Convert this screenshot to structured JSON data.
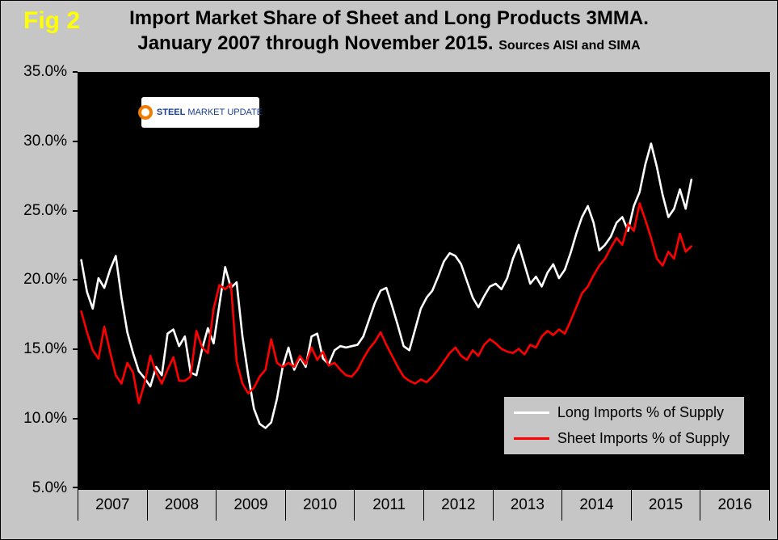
{
  "fig_label": "Fig 2",
  "title": {
    "line1": "Import Market Share of Sheet and Long Products 3MMA.",
    "line2": "January 2007 through November 2015.",
    "sources": "Sources AISI and SIMA"
  },
  "logo": {
    "steel": "STEEL",
    "market": "MARKET",
    "update": "UPDATE"
  },
  "y_axis": {
    "ticks": [
      "35.0%",
      "30.0%",
      "25.0%",
      "20.0%",
      "15.0%",
      "10.0%",
      "5.0%"
    ]
  },
  "x_axis": {
    "years": [
      "2007",
      "2008",
      "2009",
      "2010",
      "2011",
      "2012",
      "2013",
      "2014",
      "2015",
      "2016"
    ]
  },
  "legend": [
    {
      "label": "Long Imports % of Supply",
      "color": "#ffffff"
    },
    {
      "label": "Sheet Imports % of Supply",
      "color": "#ff0000"
    }
  ],
  "colors": {
    "background": "#c6c6c6",
    "plot_background": "#000000",
    "fig_label": "#ffff00",
    "long_line": "#ffffff",
    "sheet_line": "#ff0000"
  },
  "chart_data": {
    "type": "line",
    "title": "Import Market Share of Sheet and Long Products 3MMA. January 2007 through November 2015.",
    "x_frequency": "monthly",
    "x_start": "2007-01",
    "x_end": "2015-11",
    "x_axis_span": [
      "2007-01",
      "2016-12"
    ],
    "x_axis_total_months": 120,
    "ylim": [
      5,
      35
    ],
    "y_tick_step": 5,
    "y_format": "percent",
    "grid": false,
    "legend_position": "inside-bottom-right",
    "series": [
      {
        "name": "Long Imports % of Supply",
        "color": "#ffffff",
        "values": [
          21.5,
          19.2,
          18.0,
          20.2,
          19.5,
          20.8,
          21.8,
          18.8,
          16.3,
          14.8,
          13.5,
          13.0,
          12.4,
          13.8,
          13.2,
          16.2,
          16.5,
          15.3,
          16.0,
          13.4,
          13.2,
          15.1,
          16.6,
          15.5,
          18.3,
          21.0,
          19.5,
          19.9,
          16.0,
          13.2,
          10.8,
          9.7,
          9.4,
          9.8,
          11.5,
          13.8,
          15.2,
          13.6,
          14.5,
          13.8,
          16.0,
          16.2,
          14.4,
          14.0,
          15.0,
          15.3,
          15.2,
          15.3,
          15.4,
          16.0,
          17.2,
          18.4,
          19.3,
          19.5,
          18.2,
          16.8,
          15.3,
          15.0,
          16.5,
          18.0,
          18.8,
          19.3,
          20.3,
          21.4,
          22.0,
          21.8,
          21.2,
          20.0,
          18.8,
          18.1,
          18.9,
          19.6,
          19.8,
          19.4,
          20.2,
          21.6,
          22.6,
          21.2,
          19.8,
          20.3,
          19.6,
          20.6,
          21.2,
          20.2,
          20.8,
          22.0,
          23.4,
          24.6,
          25.4,
          24.2,
          22.2,
          22.6,
          23.2,
          24.2,
          24.6,
          23.6,
          25.4,
          26.4,
          28.4,
          29.9,
          28.2,
          26.2,
          24.6,
          25.2,
          26.6,
          25.2,
          27.3
        ]
      },
      {
        "name": "Sheet Imports % of Supply",
        "color": "#ff0000",
        "values": [
          17.8,
          16.3,
          15.0,
          14.4,
          16.7,
          14.9,
          13.2,
          12.6,
          14.1,
          13.4,
          11.2,
          12.6,
          14.6,
          13.4,
          12.6,
          13.6,
          14.5,
          12.8,
          12.8,
          13.1,
          16.4,
          15.2,
          14.8,
          18.0,
          19.7,
          19.4,
          19.8,
          14.2,
          12.6,
          11.9,
          12.3,
          13.1,
          13.6,
          15.8,
          14.1,
          13.8,
          14.1,
          13.8,
          14.6,
          14.0,
          15.2,
          14.3,
          14.9,
          13.9,
          14.1,
          13.6,
          13.2,
          13.1,
          13.6,
          14.4,
          15.1,
          15.6,
          16.3,
          15.4,
          14.6,
          13.8,
          13.1,
          12.8,
          12.6,
          12.9,
          12.7,
          13.1,
          13.6,
          14.2,
          14.8,
          15.2,
          14.6,
          14.3,
          15.0,
          14.6,
          15.4,
          15.8,
          15.5,
          15.1,
          14.9,
          14.8,
          15.1,
          14.7,
          15.4,
          15.2,
          16.0,
          16.4,
          16.1,
          16.5,
          16.2,
          17.1,
          18.1,
          19.1,
          19.6,
          20.4,
          21.1,
          21.6,
          22.4,
          23.1,
          22.6,
          24.1,
          23.6,
          25.6,
          24.4,
          23.1,
          21.6,
          21.1,
          22.1,
          21.6,
          23.4,
          22.1,
          22.5
        ]
      }
    ]
  }
}
